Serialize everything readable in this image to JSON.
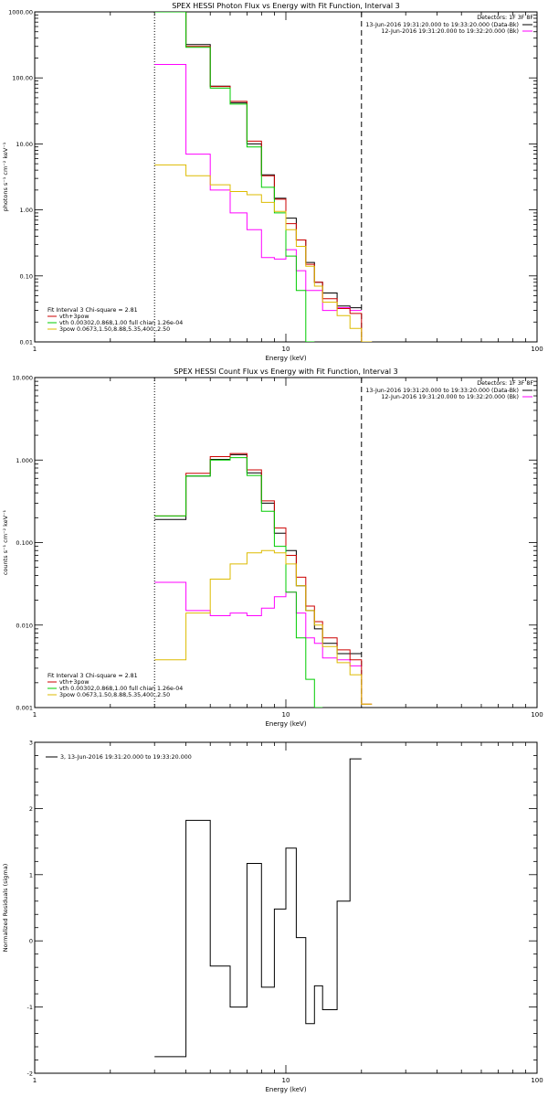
{
  "colors": {
    "data": "#000000",
    "background": "#ff00ff",
    "total": "#cc0000",
    "vth": "#00cc00",
    "pow": "#ddbb00"
  },
  "chart_data": [
    {
      "type": "line",
      "title": "SPEX HESSI Photon Flux vs Energy with Fit Function, Interval 3",
      "xlabel": "Energy (keV)",
      "ylabel": "photons s⁻¹ cm⁻² keV⁻¹",
      "xscale": "log",
      "yscale": "log",
      "xlim": [
        1,
        100
      ],
      "ylim": [
        0.01,
        1000
      ],
      "xticks": [
        1,
        10,
        100
      ],
      "xtick_labels": [
        "1",
        "10",
        "100"
      ],
      "yticks": [
        0.01,
        0.1,
        1,
        10,
        100,
        1000
      ],
      "ytick_labels": [
        "0.01",
        "0.10",
        "1.00",
        "10.00",
        "100.00",
        "1000.00"
      ],
      "vlines": [
        {
          "x": 3,
          "style": "dotted",
          "color": "#000000"
        },
        {
          "x": 20,
          "style": "dashed",
          "color": "#000000"
        }
      ],
      "legend_top": {
        "title": "Detectors: 1F 3F 8F",
        "entries": [
          {
            "text": "13-Jun-2016 19:31:20.000 to 19:33:20.000 (Data-Bk)",
            "color": "#000000"
          },
          {
            "text": "12-Jun-2016 19:31:20.000 to 19:32:20.000 (Bk)",
            "color": "#ff00ff"
          }
        ]
      },
      "legend_bottom": {
        "header": "Fit Interval 3   Chi-square = 2.81",
        "entries": [
          {
            "text": "vth+3pow",
            "color": "#cc0000"
          },
          {
            "text": "vth 0.00302,0.868,1.00  full chian 1.26e-04",
            "color": "#00cc00"
          },
          {
            "text": "3pow 0.0673,1.50,8.88,5.35,400.,2.50",
            "color": "#ddbb00"
          }
        ]
      },
      "bin_edges": [
        3,
        4,
        5,
        6,
        7,
        8,
        9,
        10,
        11,
        12,
        13,
        14,
        16,
        18,
        20,
        22
      ],
      "series": [
        {
          "name": "13-Jun-2016 19:31:20.000 to 19:33:20.000 (Data-Bk)",
          "color": "#000000",
          "values": [
            1000,
            320,
            75,
            42,
            10,
            3.4,
            1.5,
            0.75,
            0.35,
            0.16,
            0.08,
            0.055,
            0.035,
            0.033,
            null
          ]
        },
        {
          "name": "12-Jun-2016 19:31:20.000 to 19:32:20.000 (Bk)",
          "color": "#ff00ff",
          "values": [
            160,
            7,
            2,
            0.9,
            0.5,
            0.19,
            0.18,
            0.25,
            0.12,
            0.06,
            0.06,
            0.03,
            0.033,
            0.03,
            null
          ]
        },
        {
          "name": "vth+3pow",
          "color": "#cc0000",
          "values": [
            1000,
            300,
            74,
            44,
            11,
            3.3,
            1.45,
            0.62,
            0.35,
            0.15,
            0.08,
            0.045,
            0.032,
            0.027,
            0.01
          ]
        },
        {
          "name": "vth 0.00302,0.868,1.00  full chian 1.26e-04",
          "color": "#00cc00",
          "values": [
            1000,
            290,
            70,
            40,
            9,
            2.2,
            0.9,
            0.2,
            0.06,
            0.01,
            null,
            null,
            null,
            null,
            null
          ]
        },
        {
          "name": "3pow 0.0673,1.50,8.88,5.35,400.,2.50",
          "color": "#ddbb00",
          "values": [
            4.8,
            3.3,
            2.4,
            1.9,
            1.7,
            1.3,
            0.95,
            0.5,
            0.28,
            0.14,
            0.07,
            0.04,
            0.025,
            0.016,
            0.01
          ]
        }
      ]
    },
    {
      "type": "line",
      "title": "SPEX HESSI Count Flux vs Energy with Fit Function, Interval 3",
      "xlabel": "Energy (keV)",
      "ylabel": "counts s⁻¹ cm⁻² keV⁻¹",
      "xscale": "log",
      "yscale": "log",
      "xlim": [
        1,
        100
      ],
      "ylim": [
        0.001,
        10
      ],
      "xticks": [
        1,
        10,
        100
      ],
      "xtick_labels": [
        "1",
        "10",
        "100"
      ],
      "yticks": [
        0.001,
        0.01,
        0.1,
        1,
        10
      ],
      "ytick_labels": [
        "0.001",
        "0.010",
        "0.100",
        "1.000",
        "10.000"
      ],
      "vlines": [
        {
          "x": 3,
          "style": "dotted",
          "color": "#000000"
        },
        {
          "x": 20,
          "style": "dashed",
          "color": "#000000"
        }
      ],
      "legend_top": {
        "title": "Detectors: 1F 3F 8F",
        "entries": [
          {
            "text": "13-Jun-2016 19:31:20.000 to 19:33:20.000 (Data-Bk)",
            "color": "#000000"
          },
          {
            "text": "12-Jun-2016 19:31:20.000 to 19:32:20.000 (Bk)",
            "color": "#ff00ff"
          }
        ]
      },
      "legend_bottom": {
        "header": "Fit Interval 3   Chi-square = 2.81",
        "entries": [
          {
            "text": "vth+3pow",
            "color": "#cc0000"
          },
          {
            "text": "vth 0.00302,0.868,1.00  full chian 1.26e-04",
            "color": "#00cc00"
          },
          {
            "text": "3pow 0.0673,1.50,8.88,5.35,400.,2.50",
            "color": "#ddbb00"
          }
        ]
      },
      "bin_edges": [
        3,
        4,
        5,
        6,
        7,
        8,
        9,
        10,
        11,
        12,
        13,
        14,
        16,
        18,
        20,
        22
      ],
      "series": [
        {
          "name": "13-Jun-2016 19:31:20.000 to 19:33:20.000 (Data-Bk)",
          "color": "#000000",
          "values": [
            0.19,
            0.64,
            1.02,
            1.16,
            0.7,
            0.3,
            0.13,
            0.08,
            0.03,
            0.015,
            0.009,
            0.006,
            0.0045,
            0.0045,
            null
          ]
        },
        {
          "name": "12-Jun-2016 19:31:20.000 to 19:32:20.000 (Bk)",
          "color": "#ff00ff",
          "values": [
            0.033,
            0.015,
            0.013,
            0.014,
            0.013,
            0.016,
            0.022,
            0.025,
            0.014,
            0.007,
            0.006,
            0.004,
            0.0038,
            0.0032,
            null
          ]
        },
        {
          "name": "vth+3pow",
          "color": "#cc0000",
          "values": [
            0.21,
            0.69,
            1.1,
            1.2,
            0.76,
            0.32,
            0.15,
            0.07,
            0.038,
            0.017,
            0.011,
            0.007,
            0.005,
            0.0038,
            0.0011
          ]
        },
        {
          "name": "vth 0.00302,0.868,1.00  full chian 1.26e-04",
          "color": "#00cc00",
          "values": [
            0.21,
            0.64,
            1.0,
            1.07,
            0.65,
            0.24,
            0.09,
            0.025,
            0.007,
            0.0022,
            0.001,
            null,
            null,
            null,
            null
          ]
        },
        {
          "name": "3pow 0.0673,1.50,8.88,5.35,400.,2.50",
          "color": "#ddbb00",
          "values": [
            0.0038,
            0.014,
            0.036,
            0.055,
            0.075,
            0.08,
            0.075,
            0.055,
            0.03,
            0.015,
            0.01,
            0.0055,
            0.0035,
            0.0025,
            0.0011
          ]
        }
      ]
    },
    {
      "type": "line",
      "title": "",
      "xlabel": "Energy (keV)",
      "ylabel": "Normalized Residuals (sigma)",
      "xscale": "log",
      "yscale": "linear",
      "xlim": [
        1,
        100
      ],
      "ylim": [
        -2,
        3
      ],
      "xticks": [
        1,
        10,
        100
      ],
      "xtick_labels": [
        "1",
        "10",
        "100"
      ],
      "yticks": [
        -2,
        -1,
        0,
        1,
        2,
        3
      ],
      "ytick_labels": [
        "-2",
        "-1",
        "0",
        "1",
        "2",
        "3"
      ],
      "vlines": [],
      "legend_top": {
        "title": "",
        "entries": [
          {
            "text": "3, 13-Jun-2016 19:31:20.000 to 19:33:20.000",
            "color": "#000000"
          }
        ]
      },
      "bin_edges": [
        3,
        4,
        5,
        6,
        7,
        8,
        9,
        10,
        11,
        12,
        13,
        14,
        16,
        18,
        20
      ],
      "series": [
        {
          "name": "3, 13-Jun-2016 19:31:20.000 to 19:33:20.000",
          "color": "#000000",
          "values": [
            -1.75,
            1.82,
            -0.38,
            -1.0,
            1.17,
            -0.7,
            0.48,
            1.4,
            0.05,
            -1.25,
            -0.68,
            -1.04,
            0.6,
            2.75
          ]
        }
      ]
    }
  ]
}
